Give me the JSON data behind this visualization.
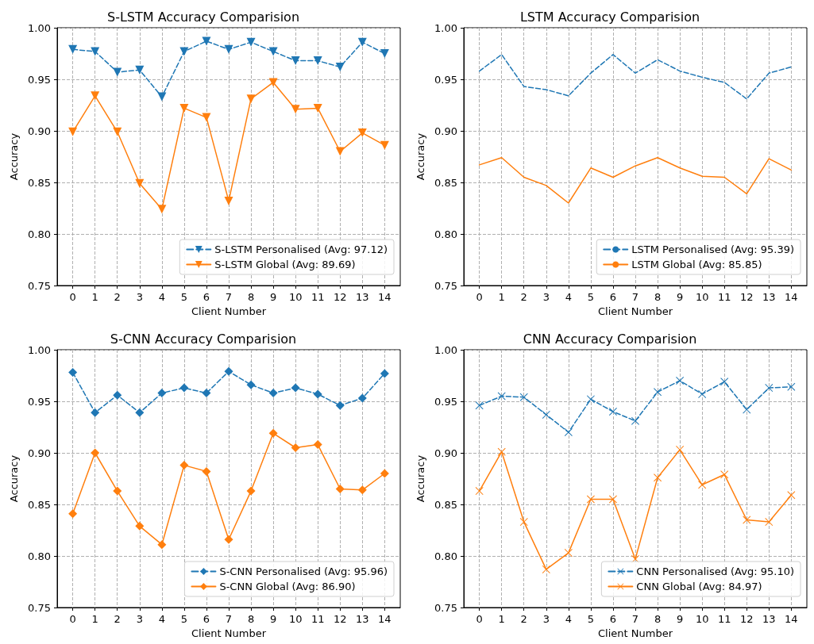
{
  "chart_data": [
    {
      "type": "line",
      "title": "S-LSTM Accuracy Comparision",
      "xlabel": "Client Number",
      "ylabel": "Accuracy",
      "x": [
        0,
        1,
        2,
        3,
        4,
        5,
        6,
        7,
        8,
        9,
        10,
        11,
        12,
        13,
        14
      ],
      "xlim": [
        -0.7,
        14.7
      ],
      "xticks": [
        0,
        1,
        2,
        3,
        4,
        5,
        6,
        7,
        8,
        9,
        10,
        11,
        12,
        13,
        14
      ],
      "ylim": [
        0.75,
        1.0
      ],
      "yticks": [
        {
          "value": 0.75,
          "label": "0.75"
        },
        {
          "value": 0.8,
          "label": "0.80"
        },
        {
          "value": 0.85,
          "label": "0.85"
        },
        {
          "value": 0.9,
          "label": "0.90"
        },
        {
          "value": 0.95,
          "label": "0.95"
        },
        {
          "value": 1.0,
          "label": "1.00"
        }
      ],
      "grid": true,
      "legend": "bottom right",
      "marker": "triangle",
      "series": [
        {
          "name": "S-LSTM Personalised (Avg: 97.12)",
          "color": "#1f77b4",
          "line_style": "dashed",
          "values": [
            0.979,
            0.977,
            0.957,
            0.959,
            0.933,
            0.977,
            0.987,
            0.979,
            0.986,
            0.977,
            0.968,
            0.968,
            0.962,
            0.986,
            0.975
          ]
        },
        {
          "name": "S-LSTM Global (Avg: 89.69)",
          "color": "#ff7f0e",
          "line_style": "solid",
          "values": [
            0.899,
            0.934,
            0.899,
            0.849,
            0.824,
            0.922,
            0.913,
            0.832,
            0.931,
            0.947,
            0.921,
            0.922,
            0.88,
            0.898,
            0.886
          ]
        }
      ]
    },
    {
      "type": "line",
      "title": "LSTM Accuracy Comparision",
      "xlabel": "Client Number",
      "ylabel": "Accuracy",
      "x": [
        0,
        1,
        2,
        3,
        4,
        5,
        6,
        7,
        8,
        9,
        10,
        11,
        12,
        13,
        14
      ],
      "xlim": [
        -0.7,
        14.7
      ],
      "xticks": [
        0,
        1,
        2,
        3,
        4,
        5,
        6,
        7,
        8,
        9,
        10,
        11,
        12,
        13,
        14
      ],
      "ylim": [
        0.75,
        1.0
      ],
      "yticks": [
        {
          "value": 0.75,
          "label": "0.75"
        },
        {
          "value": 0.8,
          "label": "0.80"
        },
        {
          "value": 0.85,
          "label": "0.85"
        },
        {
          "value": 0.9,
          "label": "0.90"
        },
        {
          "value": 0.95,
          "label": "0.95"
        },
        {
          "value": 1.0,
          "label": "1.00"
        }
      ],
      "grid": true,
      "legend": "bottom right",
      "marker": "none",
      "series": [
        {
          "name": "LSTM Personalised (Avg: 95.39)",
          "color": "#1f77b4",
          "line_style": "dashed",
          "values": [
            0.958,
            0.974,
            0.943,
            0.94,
            0.934,
            0.956,
            0.974,
            0.956,
            0.969,
            0.958,
            0.952,
            0.947,
            0.931,
            0.956,
            0.962
          ]
        },
        {
          "name": "LSTM Global (Avg: 85.85)",
          "color": "#ff7f0e",
          "line_style": "solid",
          "values": [
            0.867,
            0.874,
            0.855,
            0.847,
            0.83,
            0.864,
            0.855,
            0.866,
            0.874,
            0.864,
            0.856,
            0.855,
            0.839,
            0.873,
            0.862
          ]
        }
      ]
    },
    {
      "type": "line",
      "title": "S-CNN Accuracy Comparision",
      "xlabel": "Client Number",
      "ylabel": "Accuracy",
      "x": [
        0,
        1,
        2,
        3,
        4,
        5,
        6,
        7,
        8,
        9,
        10,
        11,
        12,
        13,
        14
      ],
      "xlim": [
        -0.7,
        14.7
      ],
      "xticks": [
        0,
        1,
        2,
        3,
        4,
        5,
        6,
        7,
        8,
        9,
        10,
        11,
        12,
        13,
        14
      ],
      "ylim": [
        0.75,
        1.0
      ],
      "yticks": [
        {
          "value": 0.75,
          "label": "0.75"
        },
        {
          "value": 0.8,
          "label": "0.80"
        },
        {
          "value": 0.85,
          "label": "0.85"
        },
        {
          "value": 0.9,
          "label": "0.90"
        },
        {
          "value": 0.95,
          "label": "0.95"
        },
        {
          "value": 1.0,
          "label": "1.00"
        }
      ],
      "grid": true,
      "legend": "bottom right",
      "marker": "diamond",
      "series": [
        {
          "name": "S-CNN Personalised (Avg: 95.96)",
          "color": "#1f77b4",
          "line_style": "dashed",
          "values": [
            0.978,
            0.939,
            0.956,
            0.939,
            0.958,
            0.963,
            0.958,
            0.979,
            0.966,
            0.958,
            0.963,
            0.957,
            0.946,
            0.953,
            0.977
          ]
        },
        {
          "name": "S-CNN Global (Avg: 86.90)",
          "color": "#ff7f0e",
          "line_style": "solid",
          "values": [
            0.841,
            0.9,
            0.863,
            0.829,
            0.811,
            0.888,
            0.882,
            0.816,
            0.863,
            0.919,
            0.905,
            0.908,
            0.865,
            0.864,
            0.88
          ]
        }
      ]
    },
    {
      "type": "line",
      "title": "CNN Accuracy Comparision",
      "xlabel": "Client Number",
      "ylabel": "Accuracy",
      "x": [
        0,
        1,
        2,
        3,
        4,
        5,
        6,
        7,
        8,
        9,
        10,
        11,
        12,
        13,
        14
      ],
      "xlim": [
        -0.7,
        14.7
      ],
      "xticks": [
        0,
        1,
        2,
        3,
        4,
        5,
        6,
        7,
        8,
        9,
        10,
        11,
        12,
        13,
        14
      ],
      "ylim": [
        0.75,
        1.0
      ],
      "yticks": [
        {
          "value": 0.75,
          "label": "0.75"
        },
        {
          "value": 0.8,
          "label": "0.80"
        },
        {
          "value": 0.85,
          "label": "0.85"
        },
        {
          "value": 0.9,
          "label": "0.90"
        },
        {
          "value": 0.95,
          "label": "0.95"
        },
        {
          "value": 1.0,
          "label": "1.00"
        }
      ],
      "grid": true,
      "legend": "bottom right",
      "marker": "cross",
      "series": [
        {
          "name": "CNN Personalised (Avg: 95.10)",
          "color": "#1f77b4",
          "line_style": "dashed",
          "values": [
            0.946,
            0.955,
            0.954,
            0.937,
            0.92,
            0.952,
            0.94,
            0.931,
            0.959,
            0.97,
            0.957,
            0.969,
            0.942,
            0.963,
            0.964
          ]
        },
        {
          "name": "CNN Global (Avg: 84.97)",
          "color": "#ff7f0e",
          "line_style": "solid",
          "values": [
            0.863,
            0.901,
            0.833,
            0.787,
            0.803,
            0.855,
            0.855,
            0.797,
            0.876,
            0.903,
            0.869,
            0.879,
            0.835,
            0.833,
            0.859
          ]
        }
      ]
    }
  ]
}
